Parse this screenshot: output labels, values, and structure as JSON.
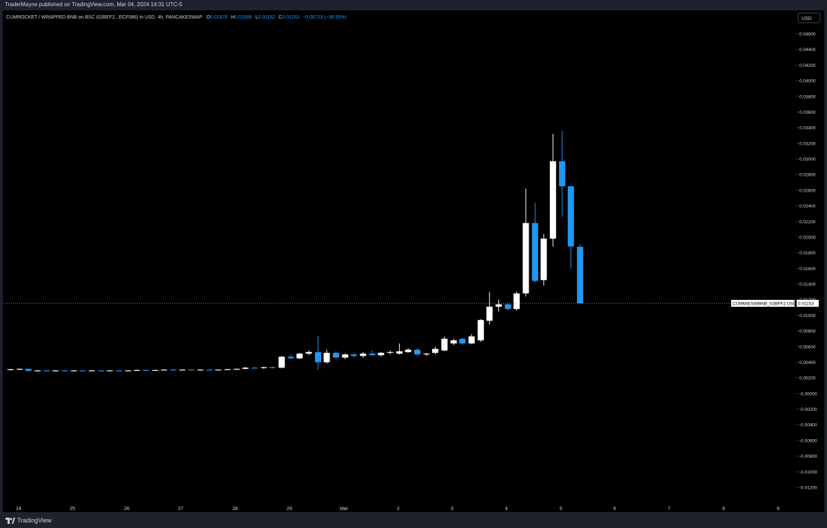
{
  "header": {
    "published_text": "TraderMayne published on TradingView.com, Mar 04, 2024 14:31 UTC-5"
  },
  "legend": {
    "symbol_text": "CUMROCKET / WRAPPED BNB on BSC (02BFF2...ECF086) in USD, 4h, PANCAKESWAP",
    "open_label": "O",
    "open_value": "0.01876",
    "high_label": "H",
    "high_value": "0.01906",
    "low_label": "L",
    "low_value": "0.01152",
    "close_label": "C",
    "close_value": "0.01153",
    "change_value": "−0.00723 (−38.55%)"
  },
  "axis": {
    "currency_button": "USD",
    "price_line_label": "CUMMIESWBNB_02BFF2.USD",
    "price_line_value": "0.01153"
  },
  "footer": {
    "brand": "TradingView"
  },
  "colors": {
    "background": "#000000",
    "frame": "#1e222d",
    "up_candle": "#ffffff",
    "down_candle": "#2196f3",
    "text": "#d1d4dc",
    "legend_value": "#2196f3"
  },
  "chart_data": {
    "type": "candlestick",
    "timeframe": "4h",
    "grid": false,
    "x_tick_labels": [
      "24",
      "25",
      "26",
      "27",
      "28",
      "29",
      "Mar",
      "2",
      "3",
      "4",
      "5",
      "6",
      "7",
      "8",
      "9"
    ],
    "y_tick_labels": [
      "0.04600",
      "0.04400",
      "0.04200",
      "0.04000",
      "0.03800",
      "0.03600",
      "0.03400",
      "0.03200",
      "0.03000",
      "0.02800",
      "0.02600",
      "0.02400",
      "0.02200",
      "0.02000",
      "0.01800",
      "0.01600",
      "0.01400",
      "0.01200",
      "0.01000",
      "0.00800",
      "0.00600",
      "0.00400",
      "0.00200",
      "-0.00000",
      "-0.00200",
      "-0.00400",
      "-0.00600",
      "-0.00800",
      "-0.01000",
      "-0.01200"
    ],
    "ylim": [
      -0.0136,
      0.0478
    ],
    "last_price": 0.01153,
    "candles": [
      {
        "t": 23.85,
        "o": 0.00305,
        "h": 0.00315,
        "l": 0.00295,
        "c": 0.0031
      },
      {
        "t": 24.02,
        "o": 0.0031,
        "h": 0.0032,
        "l": 0.003,
        "c": 0.00315
      },
      {
        "t": 24.18,
        "o": 0.00315,
        "h": 0.00318,
        "l": 0.0028,
        "c": 0.0029
      },
      {
        "t": 24.35,
        "o": 0.0029,
        "h": 0.003,
        "l": 0.0028,
        "c": 0.00295
      },
      {
        "t": 24.52,
        "o": 0.00295,
        "h": 0.003,
        "l": 0.00285,
        "c": 0.0029
      },
      {
        "t": 24.68,
        "o": 0.0029,
        "h": 0.003,
        "l": 0.00285,
        "c": 0.00295
      },
      {
        "t": 24.85,
        "o": 0.00295,
        "h": 0.003,
        "l": 0.00285,
        "c": 0.0029
      },
      {
        "t": 25.02,
        "o": 0.0029,
        "h": 0.003,
        "l": 0.00285,
        "c": 0.00295
      },
      {
        "t": 25.18,
        "o": 0.00295,
        "h": 0.003,
        "l": 0.00285,
        "c": 0.0029
      },
      {
        "t": 25.35,
        "o": 0.0029,
        "h": 0.003,
        "l": 0.00285,
        "c": 0.00295
      },
      {
        "t": 25.52,
        "o": 0.00295,
        "h": 0.003,
        "l": 0.00285,
        "c": 0.0029
      },
      {
        "t": 25.68,
        "o": 0.0029,
        "h": 0.003,
        "l": 0.00285,
        "c": 0.00295
      },
      {
        "t": 25.85,
        "o": 0.00295,
        "h": 0.003,
        "l": 0.00285,
        "c": 0.0029
      },
      {
        "t": 26.02,
        "o": 0.0029,
        "h": 0.003,
        "l": 0.00285,
        "c": 0.00295
      },
      {
        "t": 26.18,
        "o": 0.00295,
        "h": 0.00305,
        "l": 0.0029,
        "c": 0.003
      },
      {
        "t": 26.35,
        "o": 0.003,
        "h": 0.00305,
        "l": 0.0029,
        "c": 0.00295
      },
      {
        "t": 26.52,
        "o": 0.00295,
        "h": 0.00305,
        "l": 0.0029,
        "c": 0.003
      },
      {
        "t": 26.68,
        "o": 0.003,
        "h": 0.0031,
        "l": 0.00295,
        "c": 0.00305
      },
      {
        "t": 26.85,
        "o": 0.00305,
        "h": 0.0031,
        "l": 0.00295,
        "c": 0.003
      },
      {
        "t": 27.02,
        "o": 0.003,
        "h": 0.0031,
        "l": 0.00295,
        "c": 0.00305
      },
      {
        "t": 27.18,
        "o": 0.00305,
        "h": 0.0031,
        "l": 0.00295,
        "c": 0.003
      },
      {
        "t": 27.35,
        "o": 0.003,
        "h": 0.0031,
        "l": 0.00295,
        "c": 0.00305
      },
      {
        "t": 27.52,
        "o": 0.00305,
        "h": 0.0031,
        "l": 0.00295,
        "c": 0.003
      },
      {
        "t": 27.68,
        "o": 0.003,
        "h": 0.0031,
        "l": 0.00295,
        "c": 0.00305
      },
      {
        "t": 27.85,
        "o": 0.00305,
        "h": 0.00315,
        "l": 0.003,
        "c": 0.0031
      },
      {
        "t": 28.02,
        "o": 0.0031,
        "h": 0.0032,
        "l": 0.00305,
        "c": 0.00315
      },
      {
        "t": 28.18,
        "o": 0.00315,
        "h": 0.0034,
        "l": 0.0031,
        "c": 0.0033
      },
      {
        "t": 28.35,
        "o": 0.0033,
        "h": 0.0034,
        "l": 0.0032,
        "c": 0.00325
      },
      {
        "t": 28.52,
        "o": 0.00325,
        "h": 0.00345,
        "l": 0.00315,
        "c": 0.00335
      },
      {
        "t": 28.68,
        "o": 0.00335,
        "h": 0.00345,
        "l": 0.0032,
        "c": 0.0033
      },
      {
        "t": 28.85,
        "o": 0.0033,
        "h": 0.0048,
        "l": 0.0032,
        "c": 0.0047
      },
      {
        "t": 29.02,
        "o": 0.0047,
        "h": 0.005,
        "l": 0.0044,
        "c": 0.0045
      },
      {
        "t": 29.18,
        "o": 0.0045,
        "h": 0.0052,
        "l": 0.0044,
        "c": 0.0051
      },
      {
        "t": 29.35,
        "o": 0.0051,
        "h": 0.0055,
        "l": 0.0049,
        "c": 0.0053
      },
      {
        "t": 29.52,
        "o": 0.0053,
        "h": 0.0074,
        "l": 0.003,
        "c": 0.004
      },
      {
        "t": 29.68,
        "o": 0.004,
        "h": 0.0056,
        "l": 0.0038,
        "c": 0.0052
      },
      {
        "t": 29.85,
        "o": 0.0052,
        "h": 0.0054,
        "l": 0.0044,
        "c": 0.0046
      },
      {
        "t": 30.02,
        "o": 0.0046,
        "h": 0.0051,
        "l": 0.0044,
        "c": 0.005
      },
      {
        "t": 30.18,
        "o": 0.005,
        "h": 0.0052,
        "l": 0.0046,
        "c": 0.0048
      },
      {
        "t": 30.35,
        "o": 0.0048,
        "h": 0.0053,
        "l": 0.0046,
        "c": 0.0051
      },
      {
        "t": 30.52,
        "o": 0.0051,
        "h": 0.0055,
        "l": 0.0048,
        "c": 0.0049
      },
      {
        "t": 30.68,
        "o": 0.0049,
        "h": 0.0053,
        "l": 0.0047,
        "c": 0.0052
      },
      {
        "t": 30.85,
        "o": 0.0052,
        "h": 0.0055,
        "l": 0.005,
        "c": 0.0053
      },
      {
        "t": 31.02,
        "o": 0.0051,
        "h": 0.0064,
        "l": 0.005,
        "c": 0.0054
      },
      {
        "t": 31.18,
        "o": 0.0053,
        "h": 0.0058,
        "l": 0.0052,
        "c": 0.0056
      },
      {
        "t": 31.35,
        "o": 0.0056,
        "h": 0.0058,
        "l": 0.0048,
        "c": 0.005
      },
      {
        "t": 31.52,
        "o": 0.005,
        "h": 0.0052,
        "l": 0.0048,
        "c": 0.0051
      },
      {
        "t": 31.68,
        "o": 0.0052,
        "h": 0.006,
        "l": 0.005,
        "c": 0.0057
      },
      {
        "t": 31.85,
        "o": 0.0055,
        "h": 0.0073,
        "l": 0.0054,
        "c": 0.007
      },
      {
        "t": 32.02,
        "o": 0.0064,
        "h": 0.007,
        "l": 0.0062,
        "c": 0.0068
      },
      {
        "t": 32.18,
        "o": 0.007,
        "h": 0.0071,
        "l": 0.0062,
        "c": 0.0064
      },
      {
        "t": 32.35,
        "o": 0.0064,
        "h": 0.0076,
        "l": 0.0063,
        "c": 0.0073
      },
      {
        "t": 32.52,
        "o": 0.0068,
        "h": 0.0095,
        "l": 0.0066,
        "c": 0.0094
      },
      {
        "t": 32.68,
        "o": 0.0093,
        "h": 0.013,
        "l": 0.0088,
        "c": 0.0111
      },
      {
        "t": 32.85,
        "o": 0.0111,
        "h": 0.012,
        "l": 0.0105,
        "c": 0.0114
      },
      {
        "t": 33.02,
        "o": 0.0114,
        "h": 0.0116,
        "l": 0.0106,
        "c": 0.0108
      },
      {
        "t": 33.18,
        "o": 0.0108,
        "h": 0.013,
        "l": 0.0106,
        "c": 0.0128
      },
      {
        "t": 33.35,
        "o": 0.0128,
        "h": 0.0262,
        "l": 0.0124,
        "c": 0.0218
      },
      {
        "t": 33.52,
        "o": 0.0218,
        "h": 0.0244,
        "l": 0.0142,
        "c": 0.0144
      },
      {
        "t": 33.68,
        "o": 0.0145,
        "h": 0.0204,
        "l": 0.0138,
        "c": 0.0198
      },
      {
        "t": 33.85,
        "o": 0.0198,
        "h": 0.0332,
        "l": 0.0188,
        "c": 0.0297
      },
      {
        "t": 34.02,
        "o": 0.0297,
        "h": 0.0336,
        "l": 0.0226,
        "c": 0.0265
      },
      {
        "t": 34.18,
        "o": 0.0265,
        "h": 0.0265,
        "l": 0.016,
        "c": 0.0188
      },
      {
        "t": 34.35,
        "o": 0.01876,
        "h": 0.01906,
        "l": 0.01152,
        "c": 0.01153
      }
    ]
  }
}
